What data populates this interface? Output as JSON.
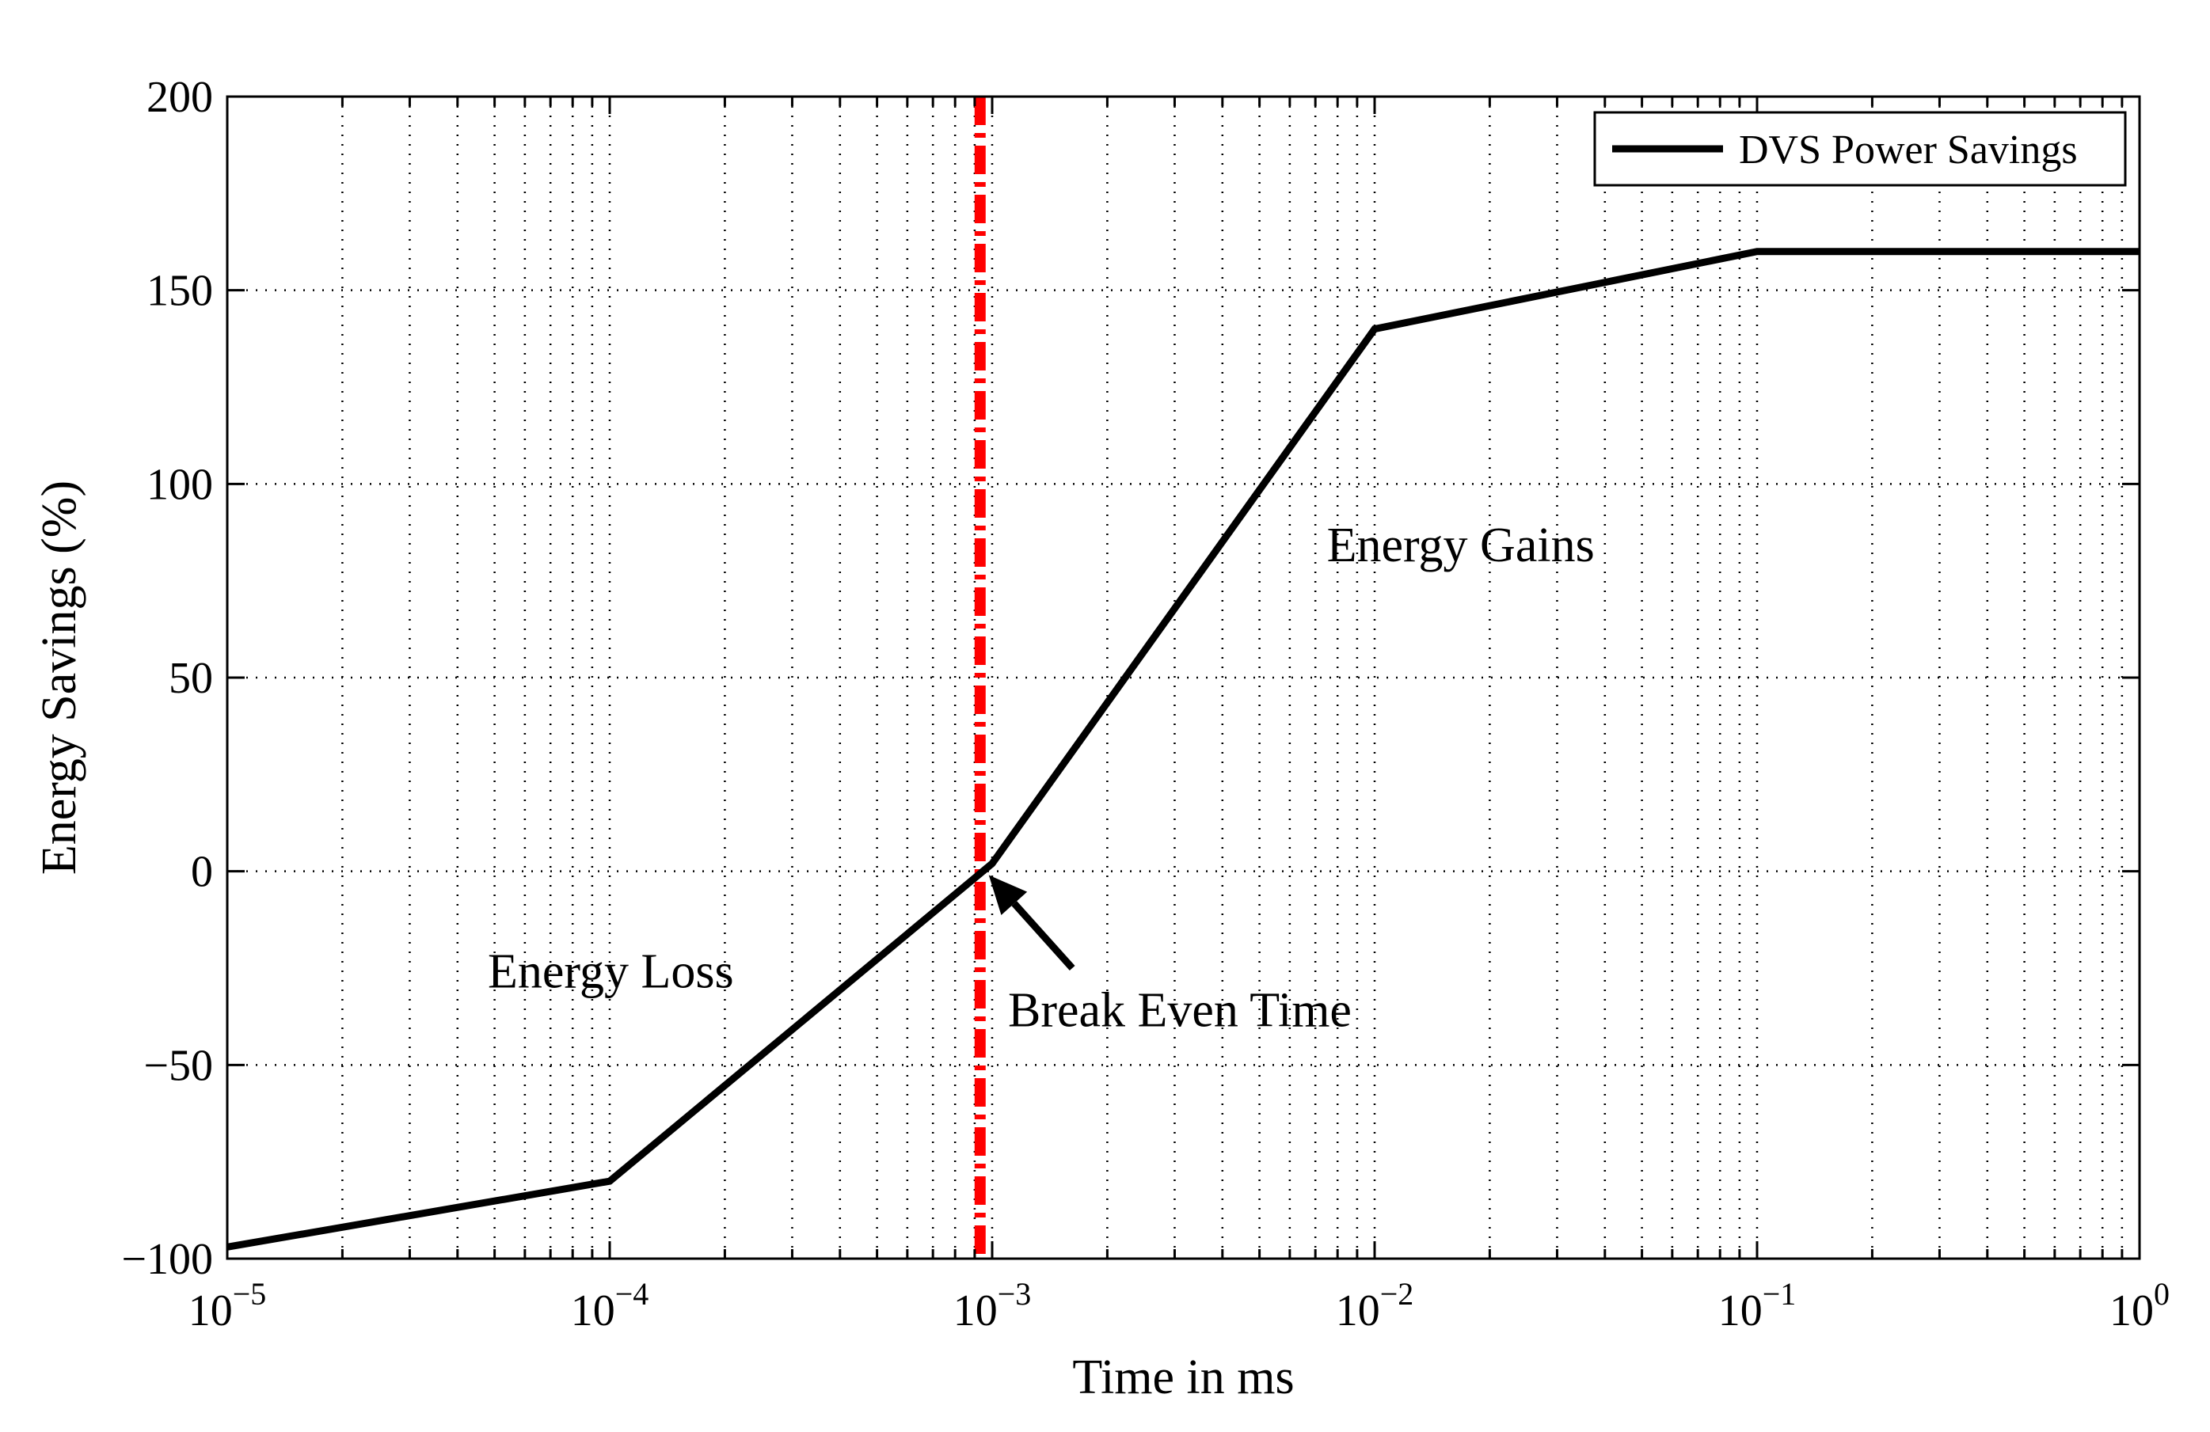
{
  "chart_data": {
    "type": "line",
    "title": "",
    "xlabel": "Time in ms",
    "ylabel": "Energy Savings (%)",
    "x_scale": "log",
    "xlim": [
      1e-05,
      1
    ],
    "ylim": [
      -100,
      200
    ],
    "grid": true,
    "legend_position": "top-right",
    "x_ticks": [
      {
        "value": 1e-05,
        "base": "10",
        "exp": "−5"
      },
      {
        "value": 0.0001,
        "base": "10",
        "exp": "−4"
      },
      {
        "value": 0.001,
        "base": "10",
        "exp": "−3"
      },
      {
        "value": 0.01,
        "base": "10",
        "exp": "−2"
      },
      {
        "value": 0.1,
        "base": "10",
        "exp": "−1"
      },
      {
        "value": 1,
        "base": "10",
        "exp": "0"
      }
    ],
    "y_ticks": [
      {
        "value": -100,
        "label": "−100"
      },
      {
        "value": -50,
        "label": "−50"
      },
      {
        "value": 0,
        "label": "0"
      },
      {
        "value": 50,
        "label": "50"
      },
      {
        "value": 100,
        "label": "100"
      },
      {
        "value": 150,
        "label": "150"
      },
      {
        "value": 200,
        "label": "200"
      }
    ],
    "series": [
      {
        "name": "DVS Power Savings",
        "color": "#000000",
        "x": [
          1e-05,
          0.0001,
          0.001,
          0.01,
          0.1,
          1
        ],
        "y": [
          -97,
          -80,
          2,
          140,
          160,
          160
        ]
      }
    ],
    "reference_line": {
      "name": "Break Even Time",
      "x": 0.00093,
      "color": "#ff0000",
      "style": "dash-dot"
    },
    "annotations": [
      {
        "id": "energy-gains",
        "text": "Energy Gains",
        "x": 0.0075,
        "y": 80
      },
      {
        "id": "energy-loss",
        "text": "Energy Loss",
        "x": 4.8e-05,
        "y": -30
      },
      {
        "id": "break-even",
        "text": "Break Even Time",
        "x": 0.0011,
        "y": -40
      }
    ],
    "arrow": {
      "from_x": 0.00162,
      "from_y": -25,
      "to_x": 0.00098,
      "to_y": -1
    }
  }
}
